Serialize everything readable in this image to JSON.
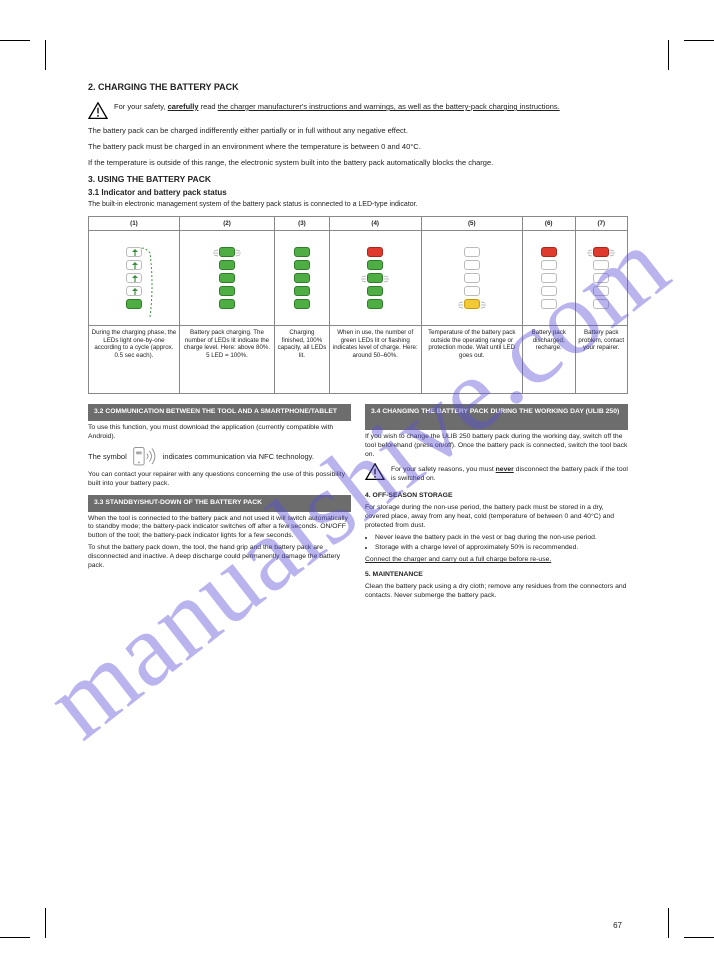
{
  "colors": {
    "green": "#4eae44",
    "green_border": "#2f7d2a",
    "red": "#e03a2f",
    "red_border": "#a8261d",
    "yellow": "#f2c934",
    "yellow_border": "#c49d12",
    "outline": "#bbbbbb",
    "header_bg": "#6d6d6d",
    "watermark": "#5a4fd8"
  },
  "watermark": "manualshive.com",
  "page_number": "67",
  "title": "2. CHARGING THE BATTERY PACK",
  "warn1": {
    "before": "For your safety, ",
    "underline_bold": "carefully",
    "mid": " read ",
    "underline_tail": "the charger manufacturer's instructions and warnings, as well as the battery-pack charging instructions."
  },
  "para1": "The battery pack can be charged indifferently either partially or in full without any negative effect.",
  "para2": "The battery pack must be charged in an environment where the temperature is between 0 and 40°C.",
  "para3": "If the temperature is outside of this range, the electronic system built into the battery pack automatically blocks the charge.",
  "section3": {
    "num": "3.",
    "title": "USING THE BATTERY PACK"
  },
  "section31": {
    "num": "3.1",
    "title": "Indicator and battery pack status"
  },
  "para31": "The built-in electronic management system of the battery pack status is connected to a LED-type indicator.",
  "table": {
    "headers": [
      "(1)",
      "(2)",
      "(3)",
      "(4)",
      "(5)",
      "(6)",
      "(7)"
    ],
    "cols": [
      {
        "leds": [
          {
            "cls": "outline",
            "arrow": true
          },
          {
            "cls": "outline",
            "arrow": true
          },
          {
            "cls": "outline",
            "arrow": true
          },
          {
            "cls": "outline",
            "arrow": true
          },
          {
            "cls": "green"
          }
        ],
        "cycle": true,
        "desc": "During the charging phase, the LEDs light one-by-one according to a cycle (approx. 0.5 sec each)."
      },
      {
        "leds": [
          {
            "cls": "green",
            "flash": true
          },
          {
            "cls": "green"
          },
          {
            "cls": "green"
          },
          {
            "cls": "green"
          },
          {
            "cls": "green"
          }
        ],
        "desc": "Battery pack charging. The number of LEDs lit indicate the charge level. Here: above 80%. 5 LED = 100%."
      },
      {
        "leds": [
          {
            "cls": "green"
          },
          {
            "cls": "green"
          },
          {
            "cls": "green"
          },
          {
            "cls": "green"
          },
          {
            "cls": "green"
          }
        ],
        "desc": "Charging finished, 100% capacity, all LEDs lit."
      },
      {
        "leds": [
          {
            "cls": "red"
          },
          {
            "cls": "green"
          },
          {
            "cls": "green",
            "flash": true
          },
          {
            "cls": "green"
          },
          {
            "cls": "green"
          }
        ],
        "desc": "When in use, the number of green LEDs lit or flashing indicates level of charge. Here: around 50–60%."
      },
      {
        "leds": [
          {
            "cls": "outline"
          },
          {
            "cls": "outline"
          },
          {
            "cls": "outline"
          },
          {
            "cls": "outline"
          },
          {
            "cls": "yellow",
            "flash": true
          }
        ],
        "desc": "Temperature of the battery pack outside the operating range or protection mode. Wait until LED goes out."
      },
      {
        "leds": [
          {
            "cls": "red"
          },
          {
            "cls": "outline"
          },
          {
            "cls": "outline"
          },
          {
            "cls": "outline"
          },
          {
            "cls": "outline"
          }
        ],
        "desc": "Battery pack discharged, recharge."
      },
      {
        "leds": [
          {
            "cls": "red",
            "flash": true
          },
          {
            "cls": "outline"
          },
          {
            "cls": "outline"
          },
          {
            "cls": "outline"
          },
          {
            "cls": "outline"
          }
        ],
        "desc": "Battery pack problem, contact your repairer."
      }
    ]
  },
  "left": {
    "hd": "3.2 COMMUNICATION BETWEEN THE TOOL AND A SMARTPHONE/TABLET",
    "p1": "To use this function, you must download the application (currently compatible with Android).",
    "p2_a": "The symbol ",
    "p2_b": " indicates communication via NFC technology.",
    "p3": "You can contact your repairer with any questions concerning the use of this possibility built into your battery pack.",
    "hd2": "3.3 STANDBY/SHUT-DOWN OF THE BATTERY PACK",
    "p4": "When the tool is connected to the battery pack and not used it will switch automatically to standby mode; the battery-pack indicator switches off after a few seconds. ON/OFF button of the tool; the battery-pack indicator lights for a few seconds.",
    "p5": "To shut the battery pack down, the tool, the hand grip and the battery pack are disconnected and inactive. A deep discharge could permanently damage the battery pack."
  },
  "right": {
    "hd": "3.4 CHANGING THE BATTERY PACK DURING\nTHE WORKING DAY (ULIB 250)",
    "p1": "If you wish to change the ULIB 250 battery pack during the working day, switch off the tool beforehand (press on/off). Once the battery pack is connected, switch the tool back on.",
    "warn_a": "For your safety reasons, you must ",
    "warn_bold": "never",
    "warn_b": " disconnect the battery pack if the tool is switched on.",
    "s4": "4. OFF-SEASON STORAGE",
    "p2": "For storage during the non-use period, the battery pack must be stored in a dry, covered place, away from any heat, cold (temperature of between 0 and 40°C) and protected from dust.",
    "p3_a": "Never leave the battery pack in the vest or bag during the non-use period.",
    "p3_b": "Storage with a charge level of approximately 50% is recommended.",
    "p4": "Connect the charger and carry out a full charge before re-use.",
    "s5": "5. MAINTENANCE",
    "p5": "Clean the battery pack using a dry cloth; remove any residues from the connectors and contacts. Never submerge the battery pack."
  }
}
